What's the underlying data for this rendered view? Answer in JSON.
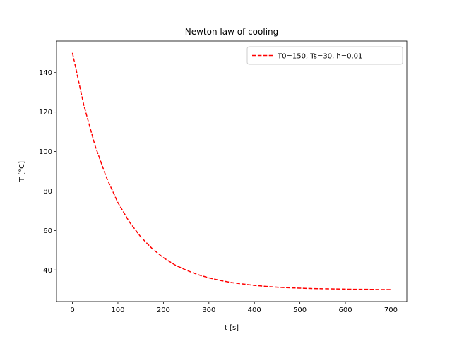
{
  "chart_data": {
    "type": "line",
    "title": "Newton law of cooling",
    "xlabel": "t [s]",
    "ylabel": "T [°C]",
    "xlim": [
      -35,
      735
    ],
    "ylim": [
      24,
      156
    ],
    "xticks": [
      0,
      100,
      200,
      300,
      400,
      500,
      600,
      700
    ],
    "yticks": [
      40,
      60,
      80,
      100,
      120,
      140
    ],
    "grid": false,
    "legend_position": "top-right",
    "series": [
      {
        "name": "T0=150, Ts=30, h=0.01",
        "color": "#ff0000",
        "line_style": "dashed",
        "x": [
          0,
          25,
          50,
          75,
          100,
          125,
          150,
          175,
          200,
          225,
          250,
          275,
          300,
          325,
          350,
          375,
          400,
          425,
          450,
          475,
          500,
          525,
          550,
          575,
          600,
          625,
          650,
          675,
          700
        ],
        "y": [
          150.0,
          123.5,
          102.8,
          86.7,
          74.1,
          64.4,
          56.8,
          50.9,
          46.2,
          42.6,
          39.9,
          37.7,
          36.0,
          34.7,
          33.6,
          32.9,
          32.2,
          31.7,
          31.3,
          31.0,
          30.8,
          30.6,
          30.5,
          30.4,
          30.3,
          30.2,
          30.2,
          30.1,
          30.1
        ]
      }
    ]
  }
}
